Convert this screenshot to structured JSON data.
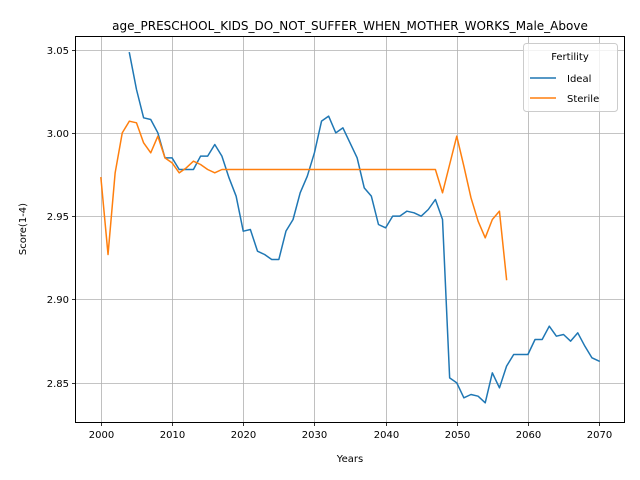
{
  "chart_data": {
    "type": "line",
    "title": "age_PRESCHOOL_KIDS_DO_NOT_SUFFER_WHEN_MOTHER_WORKS_Male_Above",
    "xlabel": "Years",
    "ylabel": "Score(1-4)",
    "xlim": [
      1996.5,
      2073.5
    ],
    "ylim": [
      2.8265,
      3.0575
    ],
    "xticks": [
      2000,
      2010,
      2020,
      2030,
      2040,
      2050,
      2060,
      2070
    ],
    "yticks": [
      2.85,
      2.9,
      2.95,
      3.0,
      3.05
    ],
    "ytick_labels": [
      "2.85",
      "2.90",
      "2.95",
      "3.00",
      "3.05"
    ],
    "grid": true,
    "legend": {
      "title": "Fertility",
      "placement": "top-right"
    },
    "series": [
      {
        "name": "Ideal",
        "color": "#1f77b4",
        "x": [
          2004,
          2005,
          2006,
          2007,
          2008,
          2009,
          2010,
          2011,
          2012,
          2013,
          2014,
          2015,
          2016,
          2017,
          2018,
          2019,
          2020,
          2021,
          2022,
          2023,
          2024,
          2025,
          2026,
          2027,
          2028,
          2029,
          2030,
          2031,
          2032,
          2033,
          2034,
          2035,
          2036,
          2037,
          2038,
          2039,
          2040,
          2041,
          2042,
          2043,
          2044,
          2045,
          2046,
          2047,
          2048,
          2049,
          2050,
          2051,
          2052,
          2053,
          2054,
          2055,
          2056,
          2057,
          2058,
          2059,
          2060,
          2061,
          2062,
          2063,
          2064,
          2065,
          2066,
          2067,
          2068,
          2069,
          2070
        ],
        "y": [
          3.048,
          3.026,
          3.009,
          3.008,
          3.0,
          2.985,
          2.985,
          2.978,
          2.978,
          2.978,
          2.986,
          2.986,
          2.993,
          2.986,
          2.973,
          2.962,
          2.941,
          2.942,
          2.929,
          2.927,
          2.924,
          2.924,
          2.941,
          2.948,
          2.964,
          2.974,
          2.988,
          3.007,
          3.01,
          3.0,
          3.003,
          2.994,
          2.985,
          2.967,
          2.962,
          2.945,
          2.943,
          2.95,
          2.95,
          2.953,
          2.952,
          2.95,
          2.954,
          2.96,
          2.948,
          2.853,
          2.85,
          2.841,
          2.843,
          2.842,
          2.838,
          2.856,
          2.847,
          2.86,
          2.867,
          2.867,
          2.867,
          2.876,
          2.876,
          2.884,
          2.878,
          2.879,
          2.875,
          2.88,
          2.872,
          2.865,
          2.863
        ]
      },
      {
        "name": "Sterile",
        "color": "#ff7f0e",
        "x": [
          2000,
          2001,
          2002,
          2003,
          2004,
          2005,
          2006,
          2007,
          2008,
          2009,
          2010,
          2011,
          2012,
          2013,
          2014,
          2015,
          2016,
          2017,
          2018,
          2019,
          2020,
          2021,
          2022,
          2023,
          2024,
          2025,
          2026,
          2027,
          2028,
          2029,
          2030,
          2031,
          2032,
          2033,
          2034,
          2035,
          2036,
          2037,
          2038,
          2039,
          2040,
          2041,
          2042,
          2043,
          2044,
          2045,
          2046,
          2047,
          2048,
          2049,
          2050,
          2051,
          2052,
          2053,
          2054,
          2055,
          2056,
          2057
        ],
        "y": [
          2.973,
          2.927,
          2.976,
          3.0,
          3.007,
          3.006,
          2.994,
          2.988,
          2.998,
          2.985,
          2.982,
          2.976,
          2.979,
          2.983,
          2.981,
          2.978,
          2.976,
          2.978,
          2.978,
          2.978,
          2.978,
          2.978,
          2.978,
          2.978,
          2.978,
          2.978,
          2.978,
          2.978,
          2.978,
          2.978,
          2.978,
          2.978,
          2.978,
          2.978,
          2.978,
          2.978,
          2.978,
          2.978,
          2.978,
          2.978,
          2.978,
          2.978,
          2.978,
          2.978,
          2.978,
          2.978,
          2.978,
          2.978,
          2.964,
          2.981,
          2.998,
          2.98,
          2.961,
          2.947,
          2.937,
          2.948,
          2.953,
          2.912
        ]
      }
    ]
  }
}
